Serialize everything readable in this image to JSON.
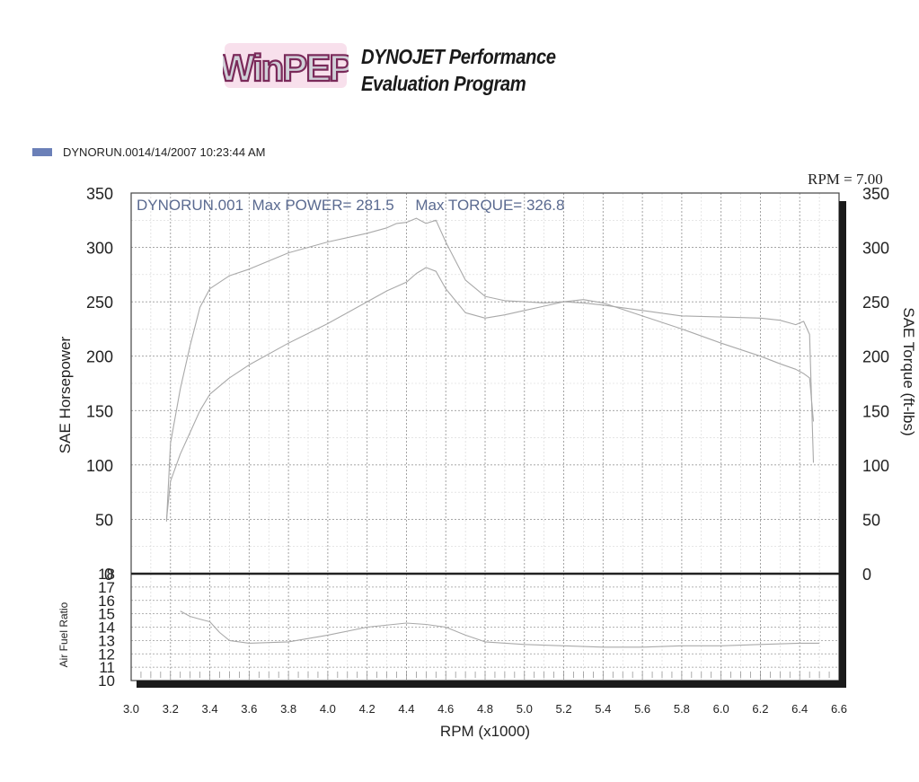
{
  "header": {
    "logo_text": "WinPEP",
    "title_line1": "DYNOJET Performance",
    "title_line2": "Evaluation Program"
  },
  "legend": {
    "label": "DYNORUN.0014/14/2007 10:23:44 AM",
    "swatch_color": "#6b80b8"
  },
  "chart_data": [
    {
      "type": "line",
      "annotation": "DYNORUN.001  Max POWER= 281.5     Max TORQUE= 326.8",
      "rpm_readout": "RPM = 7.00",
      "xlabel": "RPM (x1000)",
      "ylabel": "SAE Horsepower",
      "ylabel_right": "SAE Torque (ft-lbs)",
      "xlim": [
        3.0,
        6.6
      ],
      "ylim": [
        0,
        350
      ],
      "ylim_right": [
        0,
        350
      ],
      "xticks": [
        "3.0",
        "3.2",
        "3.4",
        "3.6",
        "3.8",
        "4.0",
        "4.2",
        "4.4",
        "4.6",
        "4.8",
        "5.0",
        "5.2",
        "5.4",
        "5.6",
        "5.8",
        "6.0",
        "6.2",
        "6.4",
        "6.6"
      ],
      "yticks": [
        "0",
        "50",
        "100",
        "150",
        "200",
        "250",
        "300",
        "350"
      ],
      "yticks_right": [
        "0",
        "50",
        "100",
        "150",
        "200",
        "250",
        "300",
        "350"
      ],
      "grid": true,
      "series": [
        {
          "role": "torque",
          "x": [
            3.18,
            3.2,
            3.25,
            3.3,
            3.35,
            3.4,
            3.5,
            3.6,
            3.8,
            4.0,
            4.2,
            4.3,
            4.35,
            4.4,
            4.45,
            4.5,
            4.55,
            4.6,
            4.7,
            4.8,
            4.9,
            5.0,
            5.1,
            5.2,
            5.3,
            5.4,
            5.6,
            5.8,
            6.0,
            6.2,
            6.3,
            6.38,
            6.42,
            6.45,
            6.47
          ],
          "y": [
            48,
            120,
            170,
            210,
            245,
            262,
            274,
            280,
            295,
            305,
            313,
            318,
            322,
            323,
            326.8,
            322,
            325,
            305,
            270,
            255,
            251,
            250,
            249,
            250,
            249,
            247,
            242,
            237,
            236,
            235,
            233,
            229,
            232,
            220,
            102
          ]
        },
        {
          "role": "power",
          "x": [
            3.18,
            3.2,
            3.25,
            3.3,
            3.35,
            3.4,
            3.5,
            3.6,
            3.8,
            4.0,
            4.2,
            4.3,
            4.4,
            4.45,
            4.5,
            4.55,
            4.6,
            4.7,
            4.8,
            4.9,
            5.0,
            5.1,
            5.2,
            5.3,
            5.4,
            5.6,
            5.8,
            6.0,
            6.2,
            6.3,
            6.38,
            6.42,
            6.45,
            6.47
          ],
          "y": [
            50,
            85,
            110,
            130,
            150,
            165,
            180,
            192,
            212,
            230,
            250,
            260,
            268,
            276,
            281.5,
            278,
            262,
            240,
            235,
            238,
            242,
            246,
            250,
            252,
            249,
            237,
            225,
            212,
            200,
            193,
            188,
            184,
            180,
            140
          ]
        }
      ]
    },
    {
      "type": "line",
      "ylabel": "Air Fuel Ratio",
      "xlim": [
        3.0,
        6.6
      ],
      "ylim": [
        10,
        18
      ],
      "yticks": [
        "10",
        "11",
        "12",
        "13",
        "14",
        "15",
        "16",
        "17",
        "18"
      ],
      "grid": true,
      "series": [
        {
          "role": "afr",
          "x": [
            3.25,
            3.3,
            3.35,
            3.4,
            3.45,
            3.5,
            3.6,
            3.8,
            4.0,
            4.2,
            4.4,
            4.5,
            4.6,
            4.7,
            4.8,
            5.0,
            5.2,
            5.4,
            5.6,
            5.8,
            6.0,
            6.2,
            6.4,
            6.5
          ],
          "y": [
            15.2,
            14.8,
            14.6,
            14.4,
            13.6,
            13.0,
            12.8,
            12.9,
            13.4,
            14.0,
            14.3,
            14.2,
            14.0,
            13.4,
            12.9,
            12.7,
            12.6,
            12.5,
            12.5,
            12.6,
            12.6,
            12.7,
            12.8,
            12.8
          ]
        }
      ]
    }
  ]
}
